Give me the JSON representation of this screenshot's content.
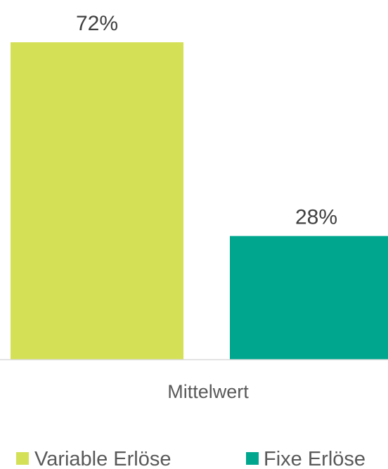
{
  "chart_data": {
    "type": "bar",
    "categories": [
      "Mittelwert"
    ],
    "series": [
      {
        "name": "Variable Erlöse",
        "values": [
          72
        ],
        "color": "#d4e157"
      },
      {
        "name": "Fixe Erlöse",
        "values": [
          28
        ],
        "color": "#00a78e"
      }
    ],
    "data_labels": [
      "72%",
      "28%"
    ],
    "ylim": [
      0,
      80
    ],
    "legend_position": "bottom",
    "grid": false
  }
}
